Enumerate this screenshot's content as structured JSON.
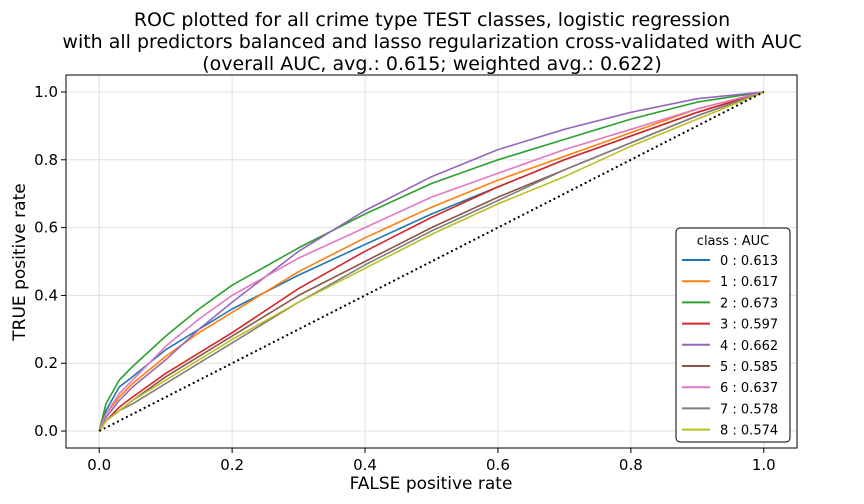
{
  "chart_data": {
    "type": "line",
    "title_lines": [
      "ROC plotted for all crime type TEST classes, logistic regression",
      "with all predictors balanced and lasso regularization cross-validated with AUC",
      "(overall AUC, avg.: 0.615; weighted avg.: 0.622)"
    ],
    "xlabel": "FALSE positive rate",
    "ylabel": "TRUE positive rate",
    "xlim": [
      -0.05,
      1.05
    ],
    "ylim": [
      -0.05,
      1.05
    ],
    "xticks": [
      0.0,
      0.2,
      0.4,
      0.6,
      0.8,
      1.0
    ],
    "yticks": [
      0.0,
      0.2,
      0.4,
      0.6,
      0.8,
      1.0
    ],
    "grid": true,
    "legend": {
      "title": "class : AUC",
      "placement": "lower-right"
    },
    "diagonal": {
      "style": "dotted",
      "color": "#000000"
    },
    "series": [
      {
        "name": "0 : 0.613",
        "color": "#1f77b4",
        "x": [
          0,
          0.01,
          0.03,
          0.05,
          0.1,
          0.15,
          0.2,
          0.3,
          0.4,
          0.5,
          0.6,
          0.7,
          0.8,
          0.9,
          1.0
        ],
        "y": [
          0,
          0.06,
          0.13,
          0.16,
          0.24,
          0.3,
          0.36,
          0.46,
          0.55,
          0.64,
          0.72,
          0.8,
          0.87,
          0.94,
          1.0
        ]
      },
      {
        "name": "1 : 0.617",
        "color": "#ff7f0e",
        "x": [
          0,
          0.01,
          0.03,
          0.05,
          0.1,
          0.15,
          0.2,
          0.3,
          0.4,
          0.5,
          0.6,
          0.7,
          0.8,
          0.9,
          1.0
        ],
        "y": [
          0,
          0.05,
          0.1,
          0.14,
          0.22,
          0.29,
          0.35,
          0.47,
          0.57,
          0.66,
          0.74,
          0.81,
          0.88,
          0.95,
          1.0
        ]
      },
      {
        "name": "2 : 0.673",
        "color": "#2ca02c",
        "x": [
          0,
          0.01,
          0.03,
          0.05,
          0.1,
          0.15,
          0.2,
          0.3,
          0.4,
          0.5,
          0.6,
          0.7,
          0.8,
          0.9,
          1.0
        ],
        "y": [
          0,
          0.08,
          0.15,
          0.19,
          0.28,
          0.36,
          0.43,
          0.54,
          0.64,
          0.73,
          0.8,
          0.86,
          0.92,
          0.97,
          1.0
        ]
      },
      {
        "name": "3 : 0.597",
        "color": "#d62728",
        "x": [
          0,
          0.01,
          0.03,
          0.05,
          0.1,
          0.15,
          0.2,
          0.3,
          0.4,
          0.5,
          0.6,
          0.7,
          0.8,
          0.9,
          1.0
        ],
        "y": [
          0,
          0.03,
          0.07,
          0.1,
          0.17,
          0.23,
          0.29,
          0.42,
          0.53,
          0.63,
          0.72,
          0.8,
          0.87,
          0.94,
          1.0
        ]
      },
      {
        "name": "4 : 0.662",
        "color": "#9467bd",
        "x": [
          0,
          0.01,
          0.03,
          0.05,
          0.1,
          0.15,
          0.2,
          0.3,
          0.4,
          0.5,
          0.6,
          0.7,
          0.8,
          0.9,
          1.0
        ],
        "y": [
          0,
          0.04,
          0.09,
          0.13,
          0.21,
          0.3,
          0.38,
          0.53,
          0.65,
          0.75,
          0.83,
          0.89,
          0.94,
          0.98,
          1.0
        ]
      },
      {
        "name": "5 : 0.585",
        "color": "#8c564b",
        "x": [
          0,
          0.01,
          0.03,
          0.05,
          0.1,
          0.15,
          0.2,
          0.3,
          0.4,
          0.5,
          0.6,
          0.7,
          0.8,
          0.9,
          1.0
        ],
        "y": [
          0,
          0.03,
          0.06,
          0.09,
          0.16,
          0.22,
          0.28,
          0.4,
          0.5,
          0.6,
          0.69,
          0.77,
          0.85,
          0.93,
          1.0
        ]
      },
      {
        "name": "6 : 0.637",
        "color": "#e377c2",
        "x": [
          0,
          0.01,
          0.03,
          0.05,
          0.1,
          0.15,
          0.2,
          0.3,
          0.4,
          0.5,
          0.6,
          0.7,
          0.8,
          0.9,
          1.0
        ],
        "y": [
          0,
          0.05,
          0.11,
          0.15,
          0.25,
          0.33,
          0.4,
          0.51,
          0.6,
          0.69,
          0.76,
          0.83,
          0.89,
          0.95,
          1.0
        ]
      },
      {
        "name": "7 : 0.578",
        "color": "#7f7f7f",
        "x": [
          0,
          0.01,
          0.03,
          0.05,
          0.1,
          0.15,
          0.2,
          0.3,
          0.4,
          0.5,
          0.6,
          0.7,
          0.8,
          0.9,
          1.0
        ],
        "y": [
          0,
          0.03,
          0.06,
          0.08,
          0.14,
          0.2,
          0.26,
          0.38,
          0.49,
          0.59,
          0.68,
          0.77,
          0.85,
          0.93,
          1.0
        ]
      },
      {
        "name": "8 : 0.574",
        "color": "#bcbd22",
        "x": [
          0,
          0.01,
          0.03,
          0.05,
          0.1,
          0.15,
          0.2,
          0.3,
          0.4,
          0.5,
          0.6,
          0.7,
          0.8,
          0.9,
          1.0
        ],
        "y": [
          0,
          0.03,
          0.06,
          0.09,
          0.15,
          0.21,
          0.27,
          0.38,
          0.48,
          0.58,
          0.67,
          0.75,
          0.84,
          0.92,
          1.0
        ]
      }
    ]
  }
}
